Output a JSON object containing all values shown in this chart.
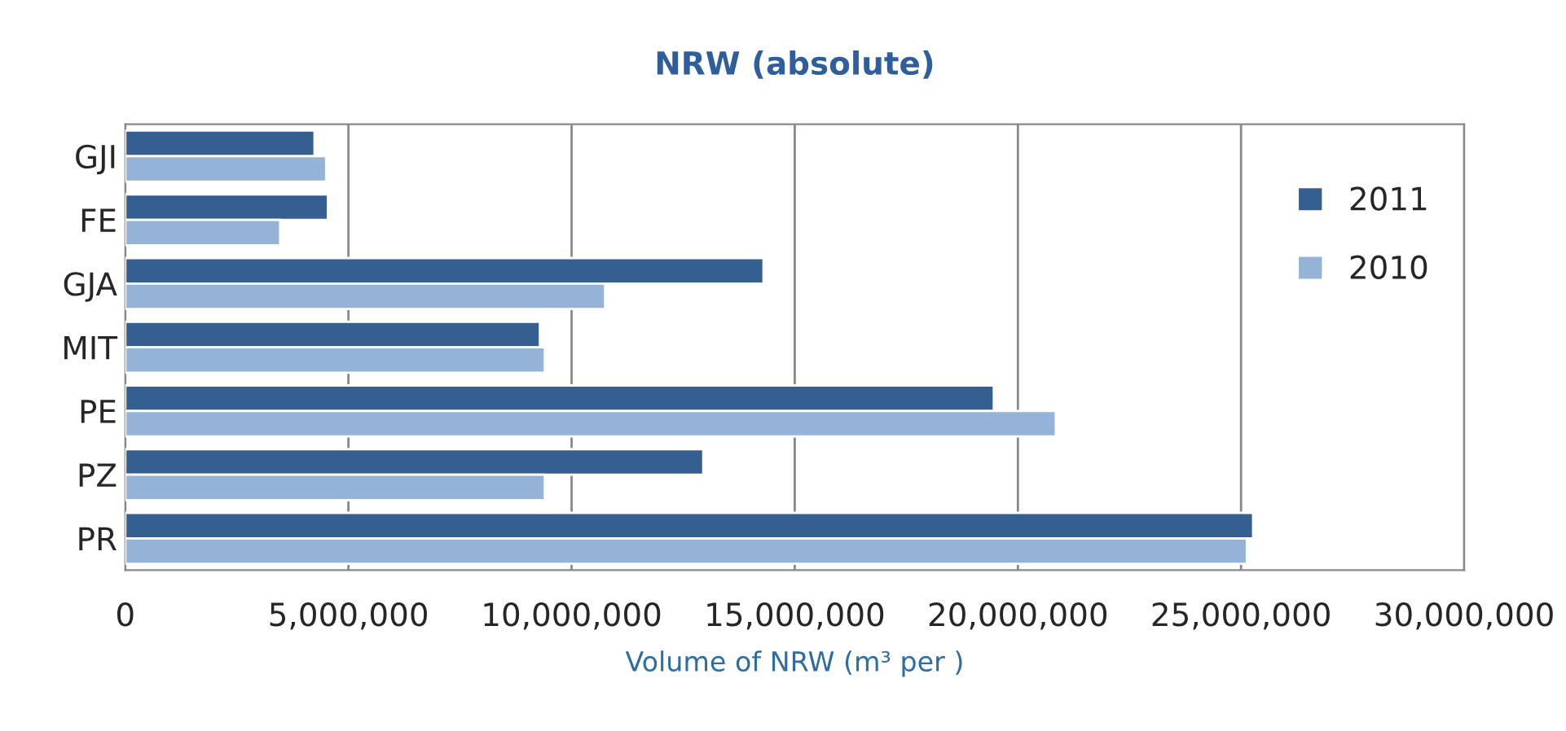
{
  "chart_data": {
    "type": "bar",
    "orientation": "horizontal",
    "title": "NRW (absolute)",
    "xlabel": "Volume of NRW (m³ per )",
    "categories": [
      "GJI",
      "FE",
      "GJA",
      "MIT",
      "PE",
      "PZ",
      "PR"
    ],
    "series": [
      {
        "name": "2011",
        "color": "#365f91",
        "values": [
          4240000,
          4540000,
          14300000,
          9290000,
          19460000,
          12950000,
          25270000
        ]
      },
      {
        "name": "2010",
        "color": "#95b3d7",
        "values": [
          4500000,
          3470000,
          10750000,
          9400000,
          20850000,
          9400000,
          25130000
        ]
      }
    ],
    "xlim": [
      0,
      30000000
    ],
    "xticks": [
      0,
      {
        "value": 5000000,
        "label": "5,000,000"
      },
      {
        "value": 10000000,
        "label": "10,000,000"
      },
      {
        "value": 15000000,
        "label": "15,000,000"
      },
      {
        "value": 20000000,
        "label": "20,000,000"
      },
      {
        "value": 25000000,
        "label": "25,000,000"
      },
      {
        "value": 30000000,
        "label": "30,000,000"
      }
    ],
    "grid": "x",
    "legend": "right"
  }
}
